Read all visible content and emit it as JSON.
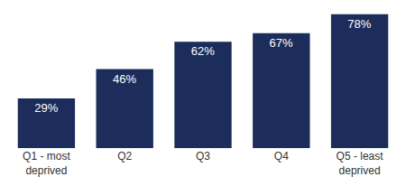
{
  "chart_data": {
    "type": "bar",
    "categories": [
      "Q1 - most deprived",
      "Q2",
      "Q3",
      "Q4",
      "Q5 - least deprived"
    ],
    "values": [
      29,
      46,
      62,
      67,
      78
    ],
    "value_labels": [
      "29%",
      "46%",
      "62%",
      "67%",
      "78%"
    ],
    "color": "#1c2c5b",
    "data_labels": true,
    "tick_labels": "x",
    "grid": false
  }
}
